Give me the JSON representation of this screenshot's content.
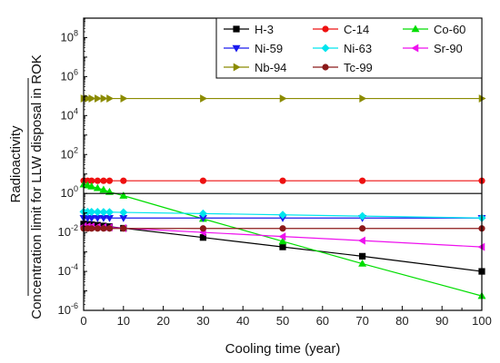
{
  "chart_data": {
    "type": "line",
    "xlabel": "Cooling time (year)",
    "ylabel_lines": [
      "Radioactivity",
      "Concentration limit for LLW disposal in ROK"
    ],
    "xlim": [
      0,
      100
    ],
    "x_ticks": [
      0,
      10,
      20,
      30,
      40,
      50,
      60,
      70,
      80,
      90,
      100
    ],
    "ylim": [
      -6,
      9
    ],
    "y_scale": "log",
    "y_tick_exponents": [
      -6,
      -4,
      -2,
      0,
      2,
      4,
      6,
      8
    ],
    "y_tick_base": "10",
    "y_ref_line": 1,
    "legend_position": "top-right",
    "series": [
      {
        "name": "H-3",
        "color": "#000000",
        "marker": "square",
        "x": [
          0,
          1,
          2,
          3.5,
          5,
          6.5,
          10,
          30,
          50,
          70,
          100
        ],
        "y": [
          0.027,
          0.026,
          0.025,
          0.0235,
          0.0215,
          0.02,
          0.0165,
          0.0055,
          0.0018,
          0.0006,
          0.0001
        ]
      },
      {
        "name": "C-14",
        "color": "#ee1111",
        "marker": "circle",
        "x": [
          0,
          1,
          2,
          3.5,
          5,
          6.5,
          10,
          30,
          50,
          70,
          100
        ],
        "y": [
          4.5,
          4.5,
          4.5,
          4.5,
          4.5,
          4.5,
          4.5,
          4.5,
          4.5,
          4.5,
          4.5
        ]
      },
      {
        "name": "Co-60",
        "color": "#00dd00",
        "marker": "triangle-up",
        "x": [
          0,
          1,
          2,
          3.5,
          5,
          6.5,
          10,
          30,
          50,
          70,
          100
        ],
        "y": [
          2.9,
          2.6,
          2.3,
          1.9,
          1.55,
          1.2,
          0.77,
          0.05,
          0.0035,
          0.00025,
          5.5e-06
        ]
      },
      {
        "name": "Ni-59",
        "color": "#1a1aee",
        "marker": "triangle-down",
        "x": [
          0,
          1,
          2,
          3.5,
          5,
          6.5,
          10,
          30,
          50,
          70,
          100
        ],
        "y": [
          0.055,
          0.055,
          0.055,
          0.055,
          0.055,
          0.055,
          0.055,
          0.055,
          0.055,
          0.055,
          0.055
        ]
      },
      {
        "name": "Ni-63",
        "color": "#00e5ee",
        "marker": "diamond",
        "x": [
          0,
          1,
          2,
          3.5,
          5,
          6.5,
          10,
          30,
          50,
          70,
          100
        ],
        "y": [
          0.115,
          0.114,
          0.113,
          0.112,
          0.111,
          0.11,
          0.107,
          0.093,
          0.08,
          0.069,
          0.055
        ]
      },
      {
        "name": "Sr-90",
        "color": "#ee11ee",
        "marker": "triangle-left",
        "x": [
          0,
          1,
          2,
          3.5,
          5,
          6.5,
          10,
          30,
          50,
          70,
          100
        ],
        "y": [
          0.021,
          0.0205,
          0.0201,
          0.0194,
          0.0186,
          0.018,
          0.0165,
          0.0101,
          0.0062,
          0.0038,
          0.0018
        ]
      },
      {
        "name": "Nb-94",
        "color": "#8b8b00",
        "marker": "triangle-right",
        "x": [
          0,
          1,
          2,
          3.5,
          5,
          6.5,
          10,
          30,
          50,
          70,
          100
        ],
        "y": [
          75000,
          75000,
          75000,
          75000,
          75000,
          75000,
          75000,
          75000,
          75000,
          75000,
          75000
        ]
      },
      {
        "name": "Tc-99",
        "color": "#8b1a1a",
        "marker": "circle",
        "x": [
          0,
          1,
          2,
          3.5,
          5,
          6.5,
          10,
          30,
          50,
          70,
          100
        ],
        "y": [
          0.016,
          0.016,
          0.016,
          0.016,
          0.016,
          0.016,
          0.016,
          0.016,
          0.016,
          0.016,
          0.016
        ]
      }
    ]
  }
}
